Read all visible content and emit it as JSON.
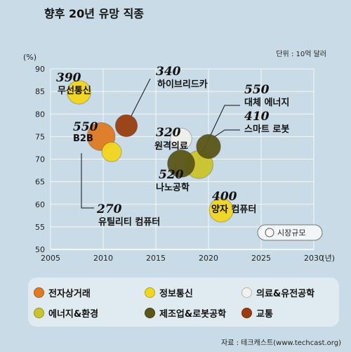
{
  "chart_data": {
    "type": "scatter",
    "title": "향후 20년 유망 직종",
    "unit_note": "단위 : 10억 달러",
    "y_unit": "(%)",
    "x_unit": "(년)",
    "xlim": [
      2005,
      2030
    ],
    "ylim": [
      50,
      90
    ],
    "x_ticks": [
      "2005",
      "2010",
      "2015",
      "2020",
      "2025",
      "2030"
    ],
    "y_ticks": [
      "50",
      "55",
      "60",
      "65",
      "70",
      "75",
      "80",
      "85",
      "90"
    ],
    "size_legend": "시장규모",
    "points": [
      {
        "label": "무선통신",
        "value_label": "390",
        "x": 2007.7,
        "y": 84.8,
        "size": 390,
        "category": "정보통신"
      },
      {
        "label": "B2B",
        "value_label": "550",
        "x": 2009.8,
        "y": 75.0,
        "size": 550,
        "category": "전자상거래"
      },
      {
        "label": "유틸리티 컴퓨터",
        "value_label": "270",
        "x": 2010.8,
        "y": 71.6,
        "size": 270,
        "category": "정보통신"
      },
      {
        "label": "하이브리드카",
        "value_label": "340",
        "x": 2012.2,
        "y": 77.4,
        "size": 340,
        "category": "교통"
      },
      {
        "label": "원격의료",
        "value_label": "320",
        "x": 2017.4,
        "y": 74.5,
        "size": 320,
        "category": "의료&유전공학"
      },
      {
        "label": "나노공학",
        "value_label": "520",
        "x": 2017.4,
        "y": 69.0,
        "size": 520,
        "category": "제조업&로봇공학"
      },
      {
        "label": "대체 에너지",
        "value_label": "550",
        "x": 2019.1,
        "y": 68.8,
        "size": 550,
        "category": "에너지&환경"
      },
      {
        "label": "스마트 로봇",
        "value_label": "410",
        "x": 2020.0,
        "y": 72.8,
        "size": 410,
        "category": "제조업&로봇공학"
      },
      {
        "label": "양자 컴퓨터",
        "value_label": "400",
        "x": 2021.2,
        "y": 58.7,
        "size": 400,
        "category": "정보통신"
      }
    ]
  },
  "legend": {
    "items": [
      {
        "label": "전자상거래",
        "color": "#e07b22"
      },
      {
        "label": "정보통신",
        "color": "#f3d61c"
      },
      {
        "label": "의료&유전공학",
        "color": "#f1f1ee"
      },
      {
        "label": "에너지&환경",
        "color": "#cbc42c"
      },
      {
        "label": "제조업&로봇공학",
        "color": "#5b5618"
      },
      {
        "label": "교통",
        "color": "#9b3d10"
      }
    ]
  },
  "source": "자료 : 테크캐스트(www.techcast.org)"
}
